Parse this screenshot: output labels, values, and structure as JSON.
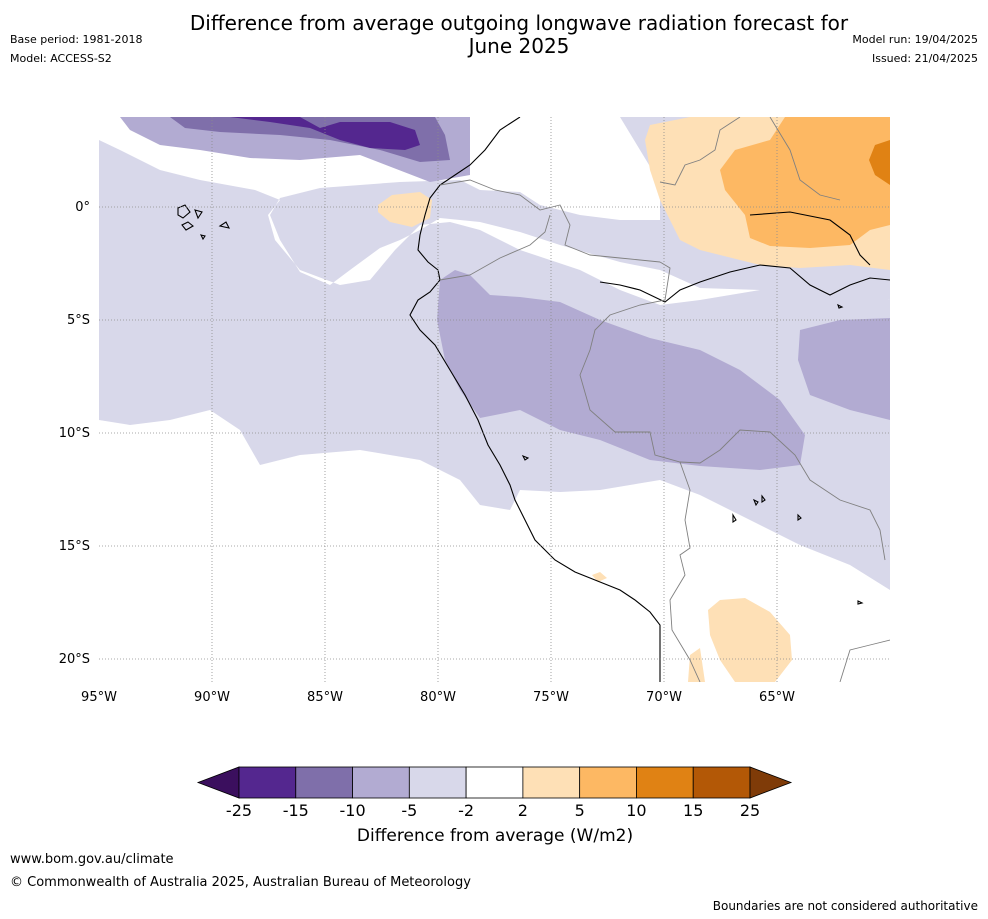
{
  "header": {
    "title_line1": "Difference from average outgoing longwave radiation forecast for",
    "title_line2": "June 2025",
    "base_period": "Base period: 1981-2018",
    "model": "Model: ACCESS-S2",
    "model_run": "Model run: 19/04/2025",
    "issued": "Issued: 21/04/2025"
  },
  "map": {
    "lat_labels": [
      "0°",
      "5°S",
      "10°S",
      "15°S",
      "20°S"
    ],
    "lon_labels": [
      "95°W",
      "90°W",
      "85°W",
      "80°W",
      "75°W",
      "70°W",
      "65°W"
    ]
  },
  "colorbar": {
    "title": "Difference from average (W/m2)",
    "tick_labels": [
      "-25",
      "-15",
      "-10",
      "-5",
      "-2",
      "2",
      "5",
      "10",
      "15",
      "25"
    ],
    "colors": [
      "#3b0f5e",
      "#54278f",
      "#7f6faa",
      "#b2abd2",
      "#d8d8ea",
      "#ffffff",
      "#fee0b6",
      "#fdb863",
      "#e08214",
      "#b35806",
      "#7f3b08"
    ]
  },
  "footer": {
    "site": "www.bom.gov.au/climate",
    "copyright": "© Commonwealth of Australia 2025, Australian Bureau of Meteorology",
    "disclaimer": "Boundaries are not considered authoritative"
  }
}
